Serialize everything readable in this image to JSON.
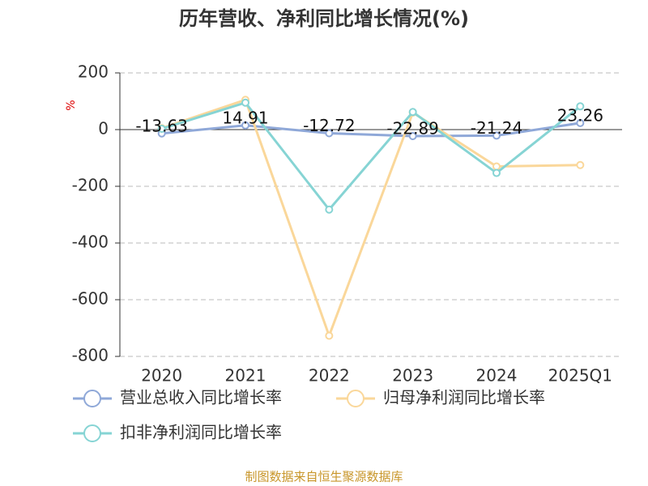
{
  "chart_data": {
    "type": "line",
    "title": "历年营收、净利同比增长情况(%)",
    "y_label": "%",
    "categories": [
      "2020",
      "2021",
      "2022",
      "2023",
      "2024",
      "2025Q1"
    ],
    "series": [
      {
        "name": "营业总收入同比增长率",
        "color": "#8fa8d8",
        "values": [
          -13.63,
          14.91,
          -12.72,
          -22.89,
          -21.24,
          23.26
        ],
        "show_labels": true
      },
      {
        "name": "归母净利润同比增长率",
        "color": "#fad79a",
        "values": [
          5,
          105,
          -727,
          60,
          -130,
          -125
        ]
      },
      {
        "name": "扣非净利润同比增长率",
        "color": "#86d4d4",
        "values": [
          3,
          95,
          -282,
          62,
          -153,
          82
        ]
      }
    ],
    "ylim": [
      -800,
      200
    ],
    "yticks": [
      -800,
      -600,
      -400,
      -200,
      0,
      200
    ],
    "grid": true,
    "source": "制图数据来自恒生聚源数据库"
  }
}
